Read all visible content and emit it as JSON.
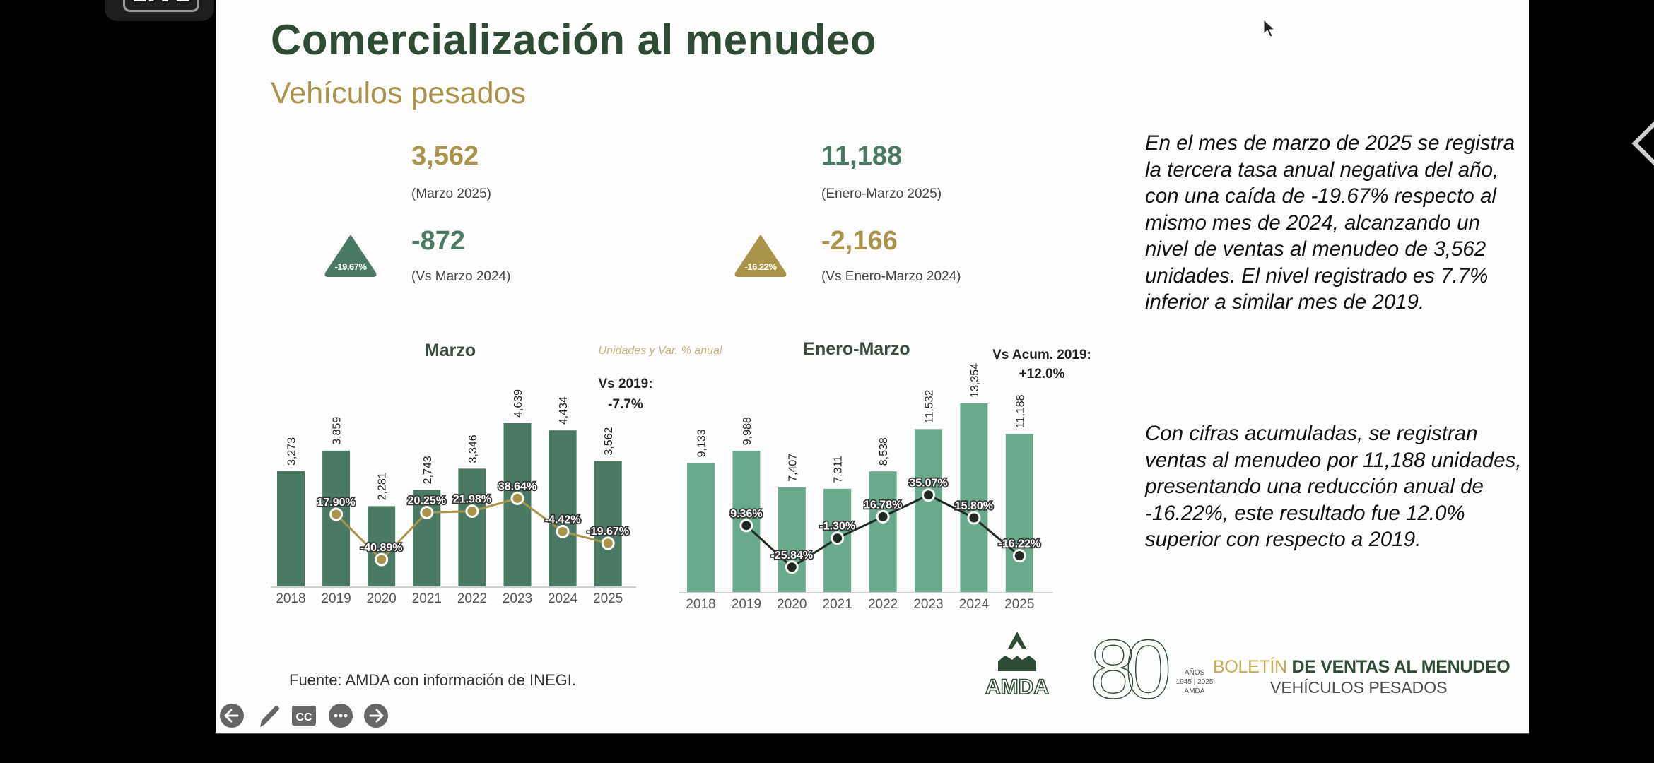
{
  "overlay": {
    "live_badge": "LIVE"
  },
  "slide": {
    "title": "Comercialización al menudeo",
    "subtitle": "Vehículos pesados",
    "kpis": {
      "month_units": "3,562",
      "month_units_label": "(Marzo 2025)",
      "month_diff": "-872",
      "month_diff_label": "(Vs Marzo 2024)",
      "month_pct_badge": "-19.67%",
      "ytd_units": "11,188",
      "ytd_units_label": "(Enero-Marzo 2025)",
      "ytd_diff": "-2,166",
      "ytd_diff_label": "(Vs Enero-Marzo 2024)",
      "ytd_pct_badge": "-16.22%"
    },
    "chart_note": "Unidades y Var. % anual",
    "paragraphs": [
      "En el mes de marzo de 2025 se registra la tercera tasa anual negativa del año, con una caída de -19.67% respecto al mismo mes de 2024, alcanzando un nivel de ventas al menudeo de 3,562 unidades. El nivel registrado es 7.7% inferior a similar mes de 2019.",
      "Con cifras acumuladas, se registran ventas al menudeo por 11,188 unidades, presentando una reducción anual de -16.22%, este resultado fue 12.0% superior con respecto a 2019."
    ],
    "source": "Fuente: AMDA con información de INEGI.",
    "logos": {
      "amda": "AMDA",
      "anniversary_number": "80",
      "anniversary_text": "AÑOS",
      "anniversary_years": "1945 | 2025",
      "anniversary_org": "AMDA",
      "boletin_gold": "BOLETÍN",
      "boletin_dark": "DE VENTAS AL MENUDEO",
      "boletin_sub": "VEHÍCULOS PESADOS"
    }
  },
  "player_controls": {
    "prev": "arrow-left-icon",
    "pen": "pencil-icon",
    "captions": "CC",
    "more": "more-icon",
    "next": "arrow-right-icon"
  },
  "colors": {
    "title": "#2e4b33",
    "gold": "#a89348",
    "marzo_bar": "#4a7a64",
    "enero_marzo_bar": "#6aaa8c",
    "marzo_line": "#a89348",
    "enero_marzo_line": "#1f2a22"
  },
  "chart_data": [
    {
      "type": "bar",
      "title": "Marzo",
      "categories": [
        "2018",
        "2019",
        "2020",
        "2021",
        "2022",
        "2023",
        "2024",
        "2025"
      ],
      "series": [
        {
          "name": "Unidades",
          "values": [
            3273,
            3859,
            2281,
            2743,
            3346,
            4639,
            4434,
            3562
          ],
          "labels": [
            "3,273",
            "3,859",
            "2,281",
            "2,743",
            "3,346",
            "4,639",
            "4,434",
            "3,562"
          ]
        },
        {
          "name": "Var. % anual",
          "type": "line",
          "values": [
            null,
            17.9,
            -40.89,
            20.25,
            21.98,
            38.64,
            -4.42,
            -19.67
          ],
          "labels": [
            "",
            "17.90%",
            "-40.89%",
            "20.25%",
            "21.98%",
            "38.64%",
            "-4.42%",
            "-19.67%"
          ]
        }
      ],
      "annotation": {
        "label": "Vs 2019:",
        "value": "-7.7%"
      }
    },
    {
      "type": "bar",
      "title": "Enero-Marzo",
      "categories": [
        "2018",
        "2019",
        "2020",
        "2021",
        "2022",
        "2023",
        "2024",
        "2025"
      ],
      "series": [
        {
          "name": "Unidades",
          "values": [
            9133,
            9988,
            7407,
            7311,
            8538,
            11532,
            13354,
            11188
          ],
          "labels": [
            "9,133",
            "9,988",
            "7,407",
            "7,311",
            "8,538",
            "11,532",
            "13,354",
            "11,188"
          ]
        },
        {
          "name": "Var. % anual",
          "type": "line",
          "values": [
            null,
            9.36,
            -25.84,
            -1.3,
            16.78,
            35.07,
            15.8,
            -16.22
          ],
          "labels": [
            "",
            "9.36%",
            "-25.84%",
            "-1.30%",
            "16.78%",
            "35.07%",
            "15.80%",
            "-16.22%"
          ]
        }
      ],
      "annotation": {
        "label": "Vs Acum. 2019:",
        "value": "+12.0%"
      }
    }
  ]
}
